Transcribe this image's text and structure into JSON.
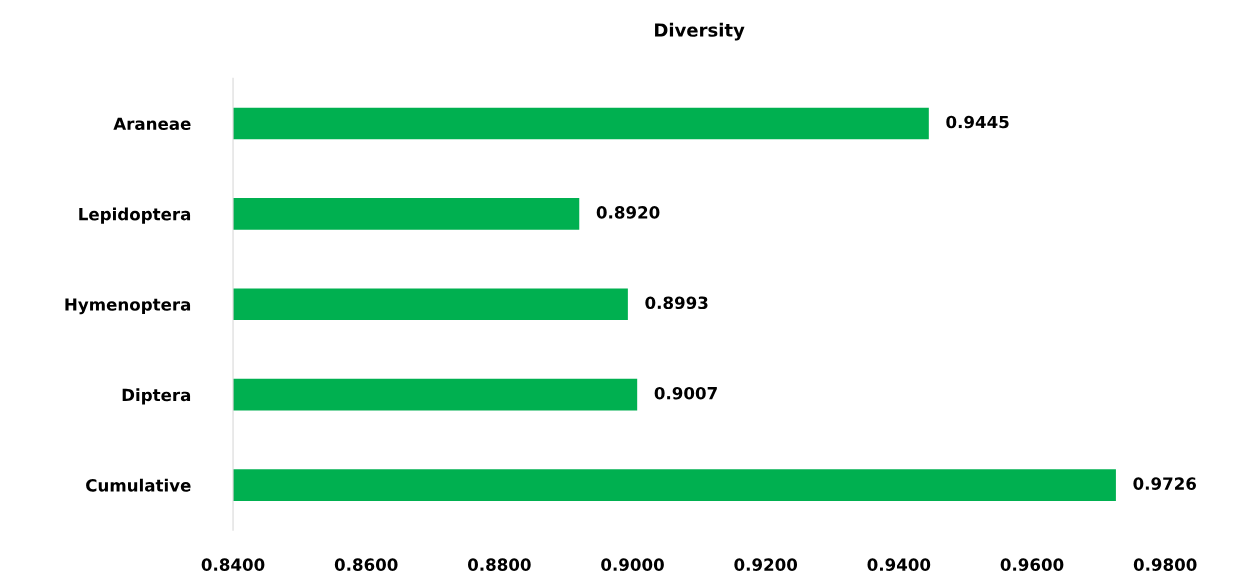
{
  "chart_data": {
    "type": "bar",
    "orientation": "horizontal",
    "title": "Diversity",
    "categories": [
      "Araneae",
      "Lepidoptera",
      "Hymenoptera",
      "Diptera",
      "Cumulative"
    ],
    "values": [
      0.9445,
      0.892,
      0.8993,
      0.9007,
      0.9726
    ],
    "value_labels": [
      "0.9445",
      "0.8920",
      "0.8993",
      "0.9007",
      "0.9726"
    ],
    "color": "#00b050",
    "xlim": [
      0.84,
      0.98
    ],
    "xticks": [
      {
        "value": 0.84,
        "label": "0.8400"
      },
      {
        "value": 0.86,
        "label": "0.8600"
      },
      {
        "value": 0.88,
        "label": "0.8800"
      },
      {
        "value": 0.9,
        "label": "0.9000"
      },
      {
        "value": 0.92,
        "label": "0.9200"
      },
      {
        "value": 0.94,
        "label": "0.9400"
      },
      {
        "value": 0.96,
        "label": "0.9600"
      },
      {
        "value": 0.98,
        "label": "0.9800"
      }
    ],
    "grid": false,
    "legend": false
  }
}
